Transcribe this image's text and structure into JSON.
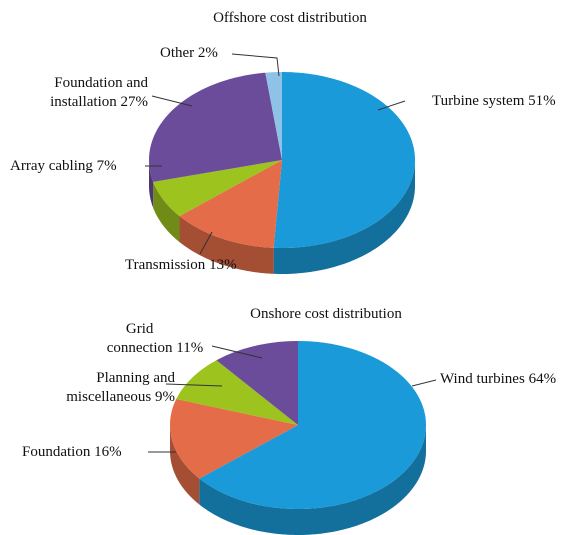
{
  "chart_data": [
    {
      "type": "pie",
      "title": "Offshore cost distribution",
      "categories": [
        "Turbine system",
        "Transmission",
        "Array cabling",
        "Foundation and installation",
        "Other"
      ],
      "values": [
        51,
        13,
        7,
        27,
        2
      ],
      "value_labels": [
        "51%",
        "13%",
        "7%",
        "27%",
        "2%"
      ],
      "colors": [
        "#1a9ad8",
        "#e46c48",
        "#9cc31e",
        "#6b4c9a",
        "#8ec2e6"
      ]
    },
    {
      "type": "pie",
      "title": "Onshore cost distribution",
      "categories": [
        "Wind turbines",
        "Foundation",
        "Planning and miscellaneous",
        "Grid connection"
      ],
      "values": [
        64,
        16,
        9,
        11
      ],
      "value_labels": [
        "64%",
        "16%",
        "9%",
        "11%"
      ],
      "colors": [
        "#1a9ad8",
        "#e46c48",
        "#9cc31e",
        "#6b4c9a"
      ]
    }
  ]
}
